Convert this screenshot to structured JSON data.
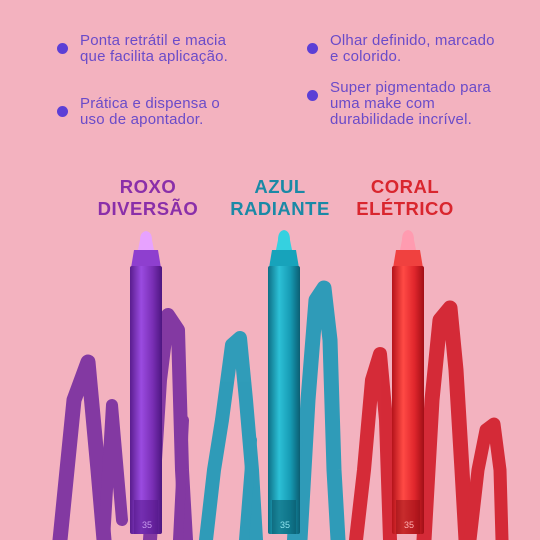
{
  "features": [
    {
      "text": "Ponta retrátil e macia que facilita aplicação."
    },
    {
      "text": "Prática e dispensa o uso de apontador."
    },
    {
      "text": "Olhar definido, marcado e colorido."
    },
    {
      "text": "Super pigmentado para uma make com durabilidade incrível."
    }
  ],
  "shades": [
    {
      "line1": "ROXO",
      "line2": "DIVERSÃO",
      "color": "#8a2fa9"
    },
    {
      "line1": "AZUL",
      "line2": "RADIANTE",
      "color": "#1a89a6"
    },
    {
      "line1": "CORAL",
      "line2": "ELÉTRICO",
      "color": "#d9262e"
    }
  ],
  "colors": {
    "background": "#f3b2bf",
    "bullet_dot": "#5b3fd6",
    "bullet_text": "#6a4bc9",
    "purple": "#7a2fb6",
    "blue": "#1aa4bd",
    "red": "#e0262c"
  },
  "icons": [
    "bullet-dot",
    "pencil",
    "scribble"
  ]
}
